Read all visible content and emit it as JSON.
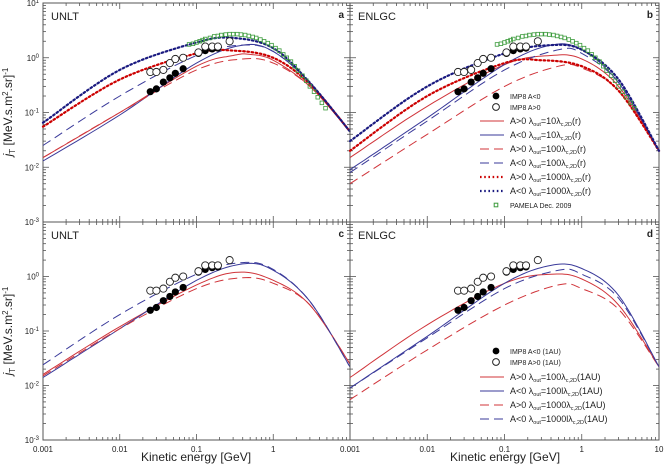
{
  "x_label": "Kinetic energy [GeV]",
  "y_label": {
    "j": "j",
    "sub": "T",
    "unit": " [MeV.s.m",
    "sup1": "2",
    "unit2": ".sr]",
    "sup2": "-1"
  },
  "x_ticks": [
    "0.001",
    "0.01",
    "0.1",
    "1",
    "10"
  ],
  "y_ticks": [
    {
      "base": "10",
      "exp": "1"
    },
    {
      "base": "10",
      "exp": "0"
    },
    {
      "base": "10",
      "exp": "-1"
    },
    {
      "base": "10",
      "exp": "-2"
    },
    {
      "base": "10",
      "exp": "-3"
    }
  ],
  "colors": {
    "red": "#d0343a",
    "blue": "#3a3a9a",
    "red_dot": "#cc0000",
    "blue_dot": "#1a1a80",
    "pamela": "#3a9a3a"
  },
  "legend_top": [
    {
      "kind": "filled",
      "text": "IMP8 A<0"
    },
    {
      "kind": "open",
      "text": "IMP8 A>0"
    },
    {
      "kind": "red-solid",
      "pre": "A>0 λ",
      "s1": "out",
      "mid": "=10λ",
      "s2": "c,2D",
      "post": "(r)"
    },
    {
      "kind": "blue-solid",
      "pre": "A<0 λ",
      "s1": "out",
      "mid": "=10λ",
      "s2": "c,2D",
      "post": "(r)"
    },
    {
      "kind": "red-dash",
      "pre": "A>0 λ",
      "s1": "out",
      "mid": "=100λ",
      "s2": "c,2D",
      "post": "(r)"
    },
    {
      "kind": "blue-dash",
      "pre": "A<0 λ",
      "s1": "out",
      "mid": "=100λ",
      "s2": "c,2D",
      "post": "(r)"
    },
    {
      "kind": "red-dot",
      "pre": "A>0 λ",
      "s1": "out",
      "mid": "=1000λ",
      "s2": "c,2D",
      "post": "(r)"
    },
    {
      "kind": "blue-dot",
      "pre": "A<0 λ",
      "s1": "out",
      "mid": "=1000λ",
      "s2": "c,2D",
      "post": "(r)"
    },
    {
      "kind": "pamela",
      "text": "PAMELA Dec. 2009"
    }
  ],
  "legend_bottom": [
    {
      "kind": "filled",
      "text": "IMP8 A<0 (1AU)"
    },
    {
      "kind": "open",
      "text": "IMP8 A>0 (1AU)"
    },
    {
      "kind": "red-solid",
      "pre": "A>0 λ",
      "s1": "out",
      "mid": "=100λ",
      "s2": "c,2D",
      "post": "(1AU)"
    },
    {
      "kind": "blue-solid",
      "pre": "A<0 λ",
      "s1": "out",
      "mid": "=100lλ",
      "s2": "c,2D",
      "post": "(1AU)"
    },
    {
      "kind": "red-dash",
      "pre": "A>0 λ",
      "s1": "out",
      "mid": "=1000λ",
      "s2": "c,2D",
      "post": "(1AU)"
    },
    {
      "kind": "blue-dash",
      "pre": "A<0 λ",
      "s1": "out",
      "mid": "=1000lλ",
      "s2": "c,2D",
      "post": "(1AU)"
    }
  ],
  "chart_data": {
    "type": "line",
    "xscale": "log",
    "yscale": "log",
    "xlim": [
      0.001,
      10
    ],
    "ylim": [
      0.001,
      10
    ],
    "observations": {
      "imp8_neg": {
        "x": [
          0.025,
          0.03,
          0.037,
          0.045,
          0.053,
          0.067,
          0.106,
          0.13,
          0.16,
          0.19
        ],
        "y": [
          0.24,
          0.27,
          0.36,
          0.43,
          0.52,
          0.63,
          1.2,
          1.35,
          1.45,
          1.5
        ]
      },
      "imp8_pos": {
        "x": [
          0.025,
          0.03,
          0.037,
          0.045,
          0.053,
          0.067,
          0.106,
          0.13,
          0.16,
          0.19,
          0.27
        ],
        "y": [
          0.55,
          0.55,
          0.6,
          0.8,
          0.95,
          1.0,
          1.25,
          1.6,
          1.6,
          1.6,
          2.0
        ]
      },
      "pamela": {
        "x": [
          0.08,
          0.09,
          0.1,
          0.11,
          0.12,
          0.13,
          0.15,
          0.17,
          0.19,
          0.21,
          0.24,
          0.27,
          0.3,
          0.34,
          0.38,
          0.43,
          0.48,
          0.54,
          0.6,
          0.68,
          0.76,
          0.85,
          0.95,
          1.07,
          1.2,
          1.35,
          1.5,
          1.7,
          1.9,
          2.1,
          2.4,
          2.7,
          3.0,
          3.4,
          3.8,
          4.3,
          4.8
        ],
        "y": [
          1.75,
          1.8,
          1.9,
          2.0,
          2.1,
          2.2,
          2.3,
          2.45,
          2.5,
          2.6,
          2.65,
          2.7,
          2.7,
          2.7,
          2.65,
          2.6,
          2.5,
          2.4,
          2.3,
          2.15,
          2.0,
          1.85,
          1.7,
          1.5,
          1.35,
          1.15,
          1.0,
          0.85,
          0.7,
          0.58,
          0.47,
          0.38,
          0.3,
          0.24,
          0.19,
          0.15,
          0.12
        ]
      }
    },
    "panels": [
      {
        "id": "a",
        "model": "UNLT",
        "obs": [
          "imp8_neg",
          "imp8_pos",
          "pamela"
        ],
        "series": [
          {
            "name": "A>0 λout=10λc,2D(r)",
            "style": "red-solid",
            "x": [
              0.001,
              0.01,
              0.1,
              0.3,
              0.5,
              1,
              3,
              10
            ],
            "y": [
              0.015,
              0.1,
              0.7,
              1.1,
              1.15,
              0.9,
              0.3,
              0.045
            ]
          },
          {
            "name": "A<0 λout=10λc,2D(r)",
            "style": "blue-solid",
            "x": [
              0.001,
              0.01,
              0.1,
              0.4,
              1,
              3,
              10
            ],
            "y": [
              0.013,
              0.09,
              0.8,
              1.7,
              1.3,
              0.35,
              0.045
            ]
          },
          {
            "name": "A>0 λout=100λc,2D(r)",
            "style": "red-dash",
            "x": [
              0.001,
              0.01,
              0.1,
              0.4,
              1,
              3,
              10
            ],
            "y": [
              0.015,
              0.1,
              0.6,
              0.95,
              0.8,
              0.3,
              0.045
            ]
          },
          {
            "name": "A<0 λout=100λc,2D(r)",
            "style": "blue-dash",
            "x": [
              0.001,
              0.01,
              0.1,
              0.4,
              1,
              3,
              10
            ],
            "y": [
              0.025,
              0.2,
              1.1,
              1.7,
              1.3,
              0.35,
              0.045
            ]
          },
          {
            "name": "A>0 λout=1000λc,2D(r)",
            "style": "red-dot",
            "x": [
              0.001,
              0.01,
              0.1,
              0.3,
              1,
              3,
              10
            ],
            "y": [
              0.055,
              0.4,
              1.2,
              1.35,
              1.0,
              0.33,
              0.045
            ]
          },
          {
            "name": "A<0 λout=1000λc,2D(r)",
            "style": "blue-dot",
            "x": [
              0.001,
              0.01,
              0.1,
              0.3,
              1,
              3,
              10
            ],
            "y": [
              0.065,
              0.6,
              1.9,
              2.3,
              1.5,
              0.35,
              0.045
            ]
          }
        ]
      },
      {
        "id": "b",
        "model": "ENLGC",
        "obs": [
          "imp8_neg",
          "imp8_pos",
          "pamela"
        ],
        "series": [
          {
            "name": "A>0 λout=10λc,2D(r)",
            "style": "red-solid",
            "x": [
              0.001,
              0.01,
              0.1,
              0.4,
              1,
              3,
              10
            ],
            "y": [
              0.015,
              0.13,
              0.75,
              1.1,
              0.95,
              0.3,
              0.02
            ]
          },
          {
            "name": "A<0 λout=10λc,2D(r)",
            "style": "blue-solid",
            "x": [
              0.001,
              0.01,
              0.1,
              0.4,
              1,
              3,
              10
            ],
            "y": [
              0.009,
              0.08,
              0.75,
              1.7,
              1.4,
              0.35,
              0.02
            ]
          },
          {
            "name": "A>0 λout=100λc,2D(r)",
            "style": "red-dash",
            "x": [
              0.001,
              0.01,
              0.1,
              0.5,
              1,
              3,
              10
            ],
            "y": [
              0.005,
              0.04,
              0.3,
              0.7,
              0.65,
              0.25,
              0.02
            ]
          },
          {
            "name": "A<0 λout=100λc,2D(r)",
            "style": "blue-dash",
            "x": [
              0.001,
              0.01,
              0.1,
              0.5,
              1,
              3,
              10
            ],
            "y": [
              0.008,
              0.07,
              0.6,
              1.4,
              1.2,
              0.35,
              0.02
            ]
          },
          {
            "name": "A>0 λout=1000λc,2D(r)",
            "style": "red-dot",
            "x": [
              0.001,
              0.01,
              0.1,
              0.3,
              1,
              3,
              10
            ],
            "y": [
              0.02,
              0.2,
              0.8,
              0.9,
              0.7,
              0.25,
              0.02
            ]
          },
          {
            "name": "A<0 λout=1000λc,2D(r)",
            "style": "blue-dot",
            "x": [
              0.001,
              0.01,
              0.1,
              0.4,
              1,
              3,
              10
            ],
            "y": [
              0.03,
              0.3,
              1.2,
              1.7,
              1.4,
              0.4,
              0.02
            ]
          }
        ]
      },
      {
        "id": "c",
        "model": "UNLT",
        "obs": [
          "imp8_neg",
          "imp8_pos"
        ],
        "series": [
          {
            "name": "A>0 λout=100λc,2D(1AU)",
            "style": "red-solid",
            "x": [
              0.001,
              0.01,
              0.1,
              0.35,
              1,
              3,
              10
            ],
            "y": [
              0.016,
              0.12,
              0.7,
              1.2,
              0.85,
              0.3,
              0.025
            ]
          },
          {
            "name": "A<0 λout=100lλc,2D(1AU)",
            "style": "blue-solid",
            "x": [
              0.001,
              0.01,
              0.1,
              0.4,
              1,
              3,
              10
            ],
            "y": [
              0.014,
              0.11,
              0.85,
              1.7,
              1.3,
              0.35,
              0.022
            ]
          },
          {
            "name": "A>0 λout=1000λc,2D(1AU)",
            "style": "red-dash",
            "x": [
              0.001,
              0.01,
              0.1,
              0.4,
              1,
              3,
              10
            ],
            "y": [
              0.015,
              0.11,
              0.6,
              0.95,
              0.75,
              0.3,
              0.025
            ]
          },
          {
            "name": "A<0 λout=1000lλc,2D(1AU)",
            "style": "blue-dash",
            "x": [
              0.001,
              0.01,
              0.1,
              0.4,
              1,
              3,
              10
            ],
            "y": [
              0.024,
              0.2,
              1.1,
              1.8,
              1.35,
              0.35,
              0.022
            ]
          }
        ]
      },
      {
        "id": "d",
        "model": "ENLGC",
        "obs": [
          "imp8_neg",
          "imp8_pos"
        ],
        "series": [
          {
            "name": "A>0 λout=100λc,2D(1AU)",
            "style": "red-solid",
            "x": [
              0.001,
              0.01,
              0.1,
              0.4,
              1,
              3,
              10
            ],
            "y": [
              0.014,
              0.13,
              0.75,
              1.1,
              0.9,
              0.3,
              0.022
            ]
          },
          {
            "name": "A<0 λout=100lλc,2D(1AU)",
            "style": "blue-solid",
            "x": [
              0.001,
              0.01,
              0.1,
              0.4,
              1,
              3,
              10
            ],
            "y": [
              0.009,
              0.08,
              0.75,
              1.6,
              1.4,
              0.45,
              0.022
            ]
          },
          {
            "name": "A>0 λout=1000λc,2D(1AU)",
            "style": "red-dash",
            "x": [
              0.001,
              0.01,
              0.1,
              0.5,
              1,
              3,
              10
            ],
            "y": [
              0.0055,
              0.045,
              0.3,
              0.7,
              0.6,
              0.25,
              0.022
            ]
          },
          {
            "name": "A<0 λout=1000lλc,2D(1AU)",
            "style": "blue-dash",
            "x": [
              0.001,
              0.01,
              0.1,
              0.5,
              1,
              3,
              10
            ],
            "y": [
              0.009,
              0.075,
              0.6,
              1.3,
              1.1,
              0.4,
              0.022
            ]
          }
        ]
      }
    ]
  }
}
